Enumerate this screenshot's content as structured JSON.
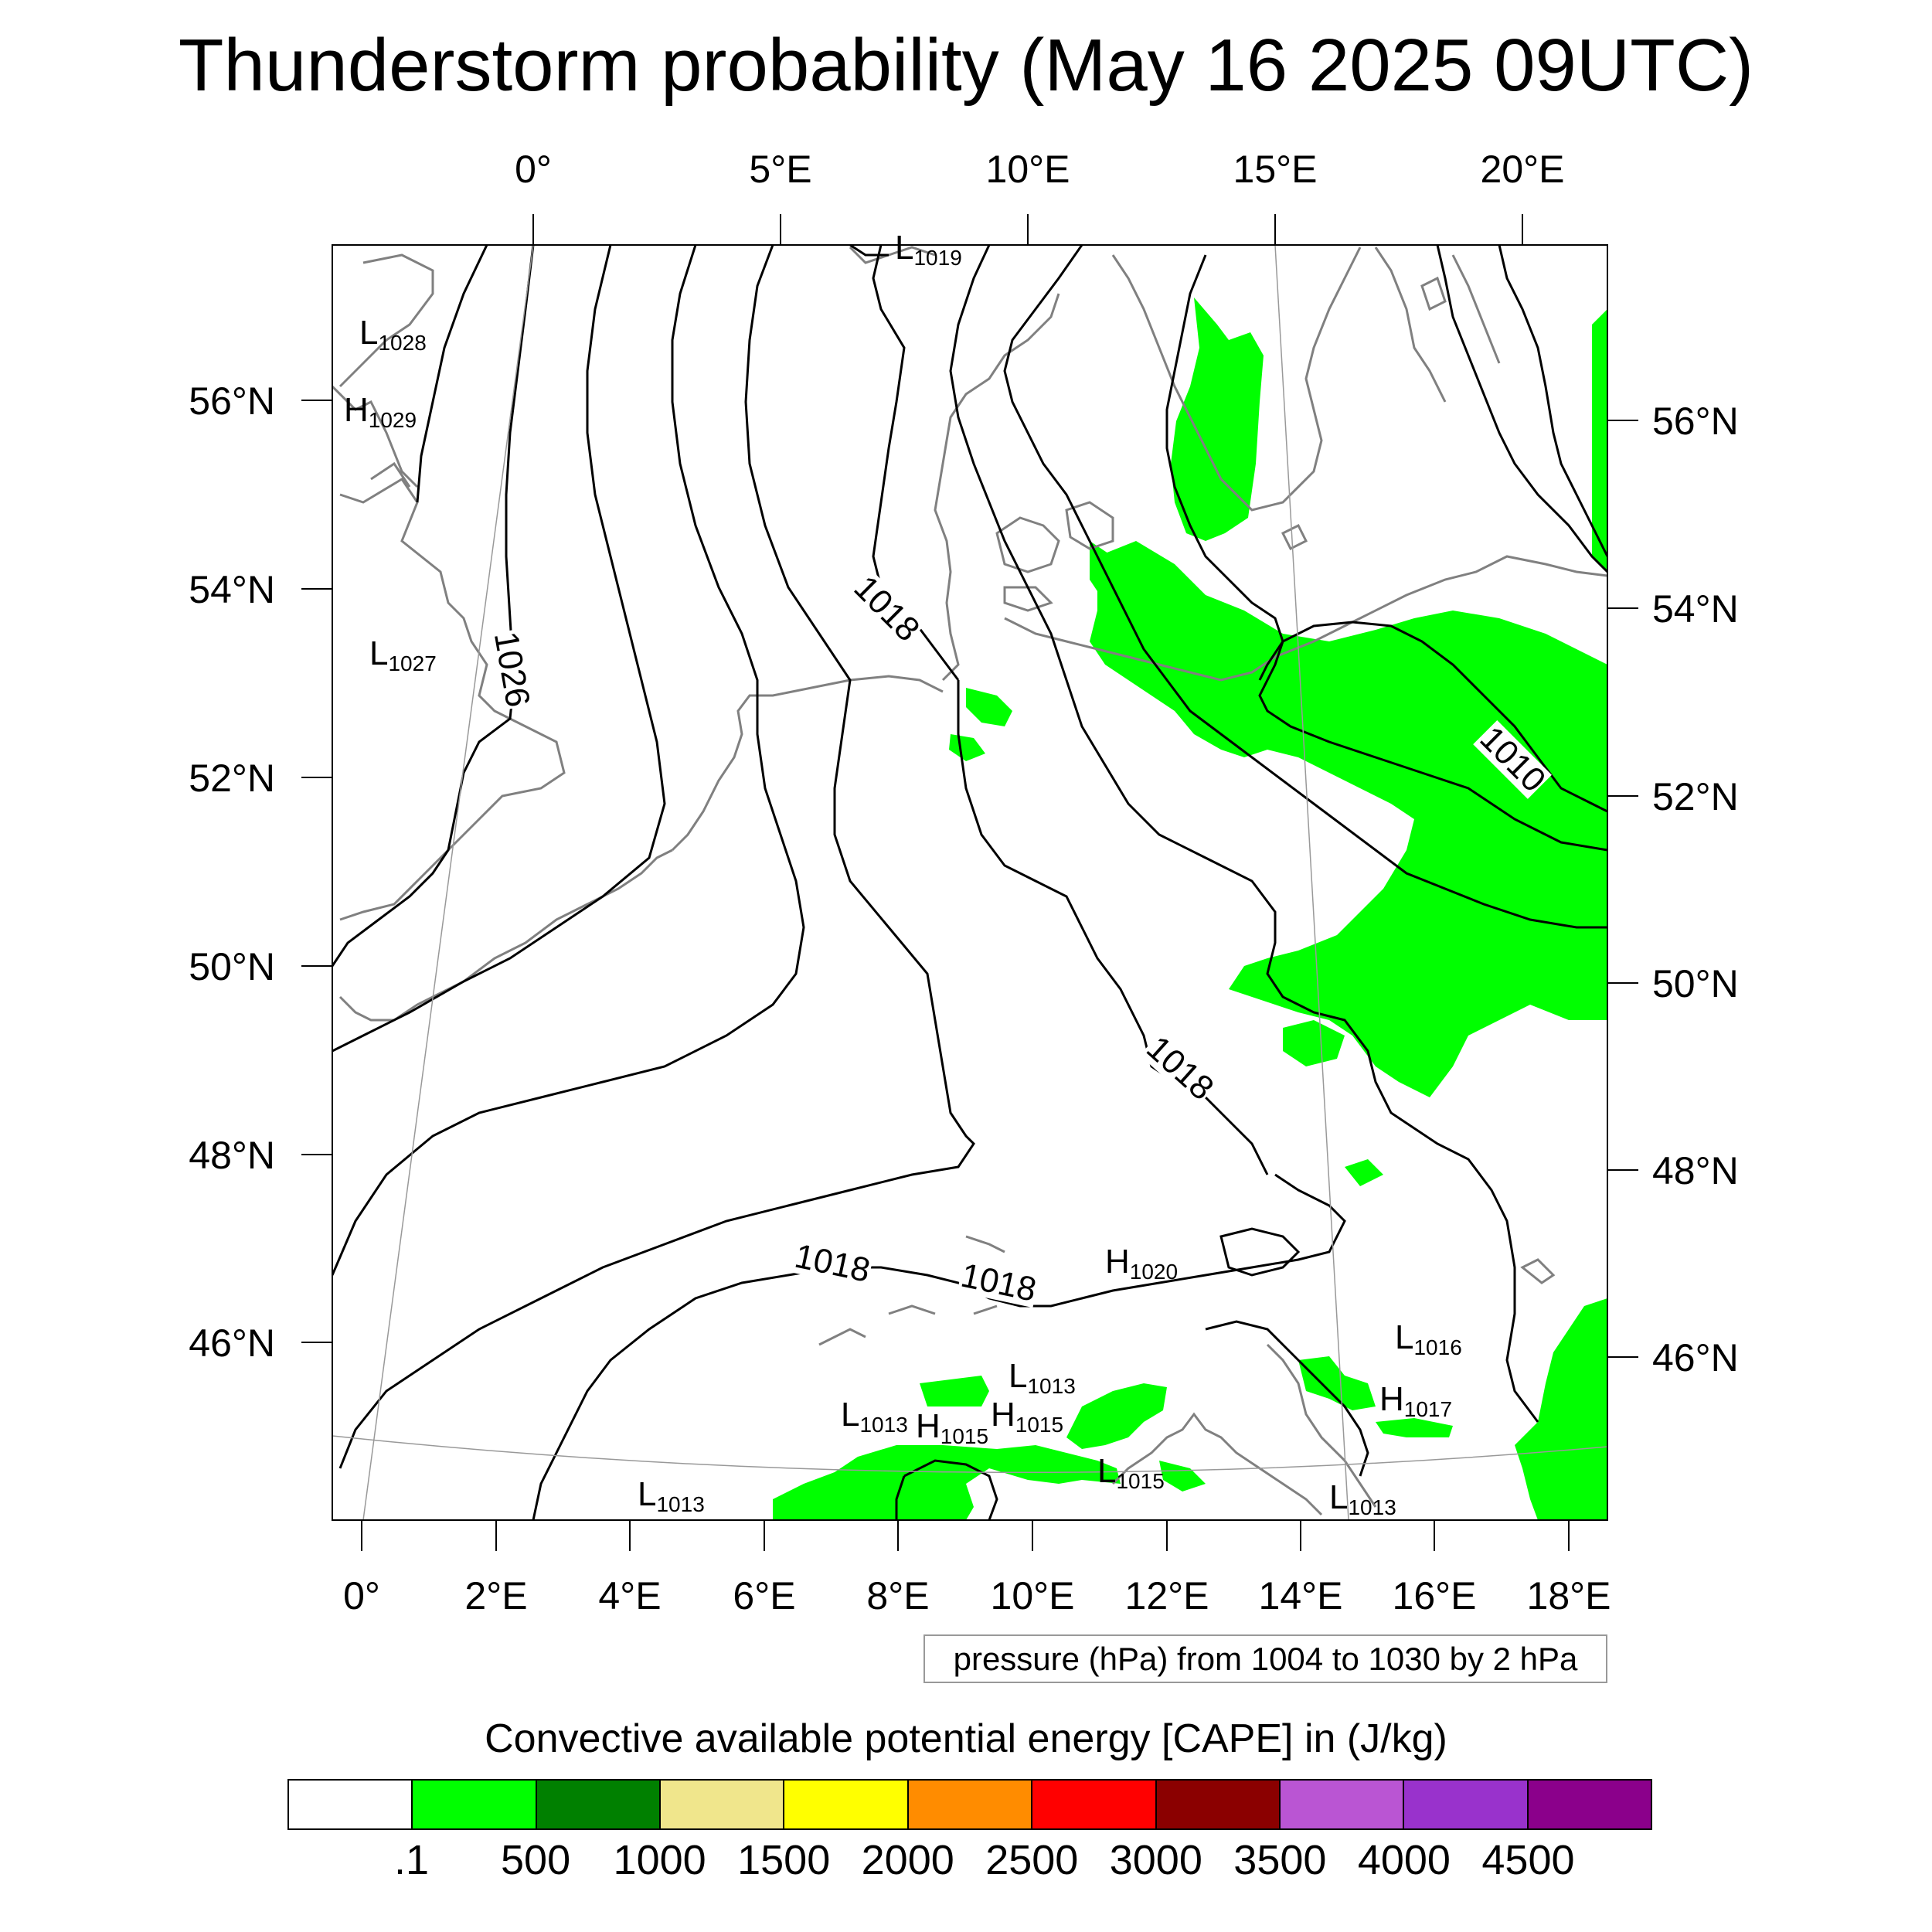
{
  "title": "Thunderstorm probability (May 16 2025 09UTC)",
  "top_axis_ticks": [
    "0°",
    "5°E",
    "10°E",
    "15°E",
    "20°E"
  ],
  "bottom_axis_ticks": [
    "0°",
    "2°E",
    "4°E",
    "6°E",
    "8°E",
    "10°E",
    "12°E",
    "14°E",
    "16°E",
    "18°E"
  ],
  "left_axis_ticks": [
    "56°N",
    "54°N",
    "52°N",
    "50°N",
    "48°N",
    "46°N"
  ],
  "right_axis_ticks": [
    "56°N",
    "54°N",
    "52°N",
    "50°N",
    "48°N",
    "46°N"
  ],
  "isobar_labels": [
    "1026",
    "1018",
    "1010",
    "1018",
    "1018",
    "1018"
  ],
  "pressure_centers": [
    {
      "type": "L",
      "value": "1028"
    },
    {
      "type": "H",
      "value": "1029"
    },
    {
      "type": "L",
      "value": "1027"
    },
    {
      "type": "L",
      "value": "1019"
    },
    {
      "type": "H",
      "value": "1020"
    },
    {
      "type": "L",
      "value": "1016"
    },
    {
      "type": "H",
      "value": "1017"
    },
    {
      "type": "L",
      "value": "1013"
    },
    {
      "type": "L",
      "value": "1013"
    },
    {
      "type": "H",
      "value": "1015"
    },
    {
      "type": "H",
      "value": "1015"
    },
    {
      "type": "L",
      "value": "1015"
    },
    {
      "type": "L",
      "value": "1013"
    },
    {
      "type": "L",
      "value": "1013"
    }
  ],
  "pressure_note": "pressure (hPa) from 1004 to 1030 by 2 hPa",
  "legend": {
    "title": "Convective available potential energy [CAPE] in (J/kg)",
    "colors": [
      "#ffffff",
      "#00ff00",
      "#008000",
      "#f0e68c",
      "#ffff00",
      "#ff8c00",
      "#ff0000",
      "#8b0000",
      "#ba55d3",
      "#9932cc",
      "#8b008b"
    ],
    "labels": [
      ".1",
      "500",
      "1000",
      "1500",
      "2000",
      "2500",
      "3000",
      "3500",
      "4000",
      "4500"
    ]
  },
  "colors": {
    "coastline": "#808080",
    "isobar": "#000000",
    "cape_fill": "#00ff00"
  }
}
